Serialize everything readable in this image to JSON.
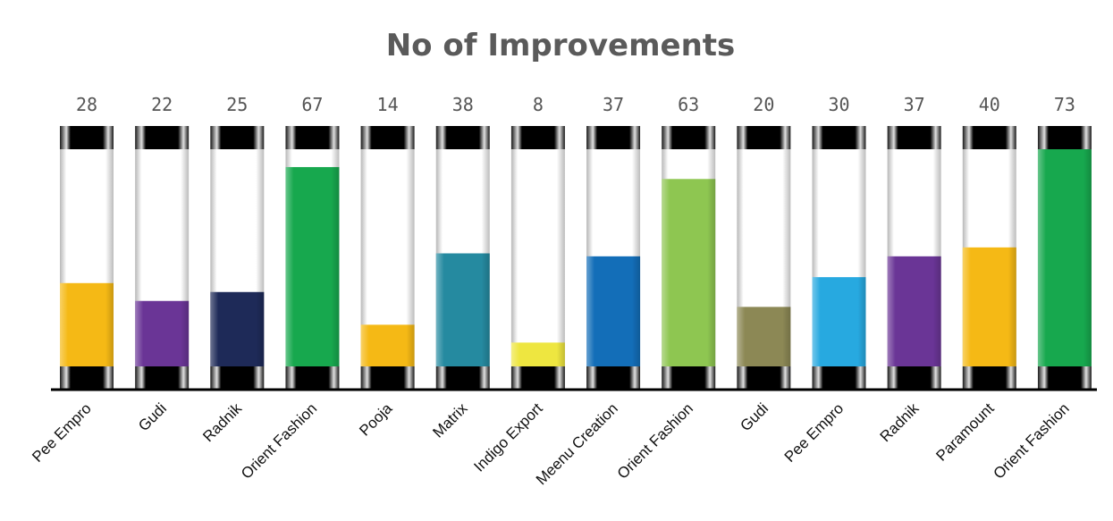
{
  "chart_data": {
    "type": "bar",
    "title": "No of Improvements",
    "categories": [
      "Pee Empro",
      "Gudi",
      "Radnik",
      "Orient Fashion",
      "Pooja",
      "Matrix",
      "Indigo Export",
      "Meenu Creation",
      "Orient Fashion",
      "Gudi",
      "Pee Empro",
      "Radnik",
      "Paramount",
      "Orient Fashion"
    ],
    "values": [
      28,
      22,
      25,
      67,
      14,
      38,
      8,
      37,
      63,
      20,
      30,
      37,
      40,
      73
    ],
    "colors": [
      "#f5b915",
      "#6a3596",
      "#1e2a58",
      "#17a84e",
      "#f5b915",
      "#258aa0",
      "#eee640",
      "#136eb8",
      "#8ec651",
      "#8c8855",
      "#27a9e0",
      "#6a3596",
      "#f5b915",
      "#17a84e"
    ],
    "ylim": [
      0,
      73
    ],
    "xlabel": "",
    "ylabel": "",
    "grid": false,
    "legend": "none"
  }
}
